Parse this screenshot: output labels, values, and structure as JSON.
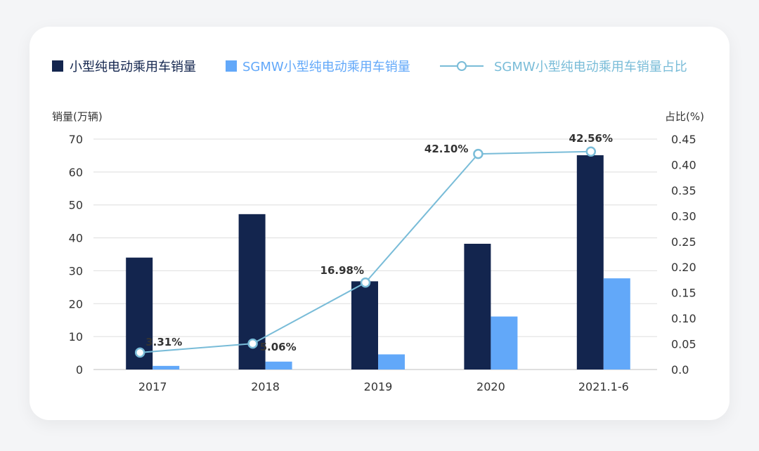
{
  "chart_data": {
    "type": "bar",
    "categories": [
      "2017",
      "2018",
      "2019",
      "2020",
      "2021.1-6"
    ],
    "series": [
      {
        "name": "小型纯电动乘用车销量",
        "type": "bar",
        "axis": "left",
        "values": [
          34,
          47.2,
          26.8,
          38.2,
          65.1
        ],
        "color": "#13254e"
      },
      {
        "name": "SGMW小型纯电动乘用车销量",
        "type": "bar",
        "axis": "left",
        "values": [
          1.1,
          2.4,
          4.6,
          16.1,
          27.7
        ],
        "color": "#62a8f9"
      },
      {
        "name": "SGMW小型纯电动乘用车销量占比",
        "type": "line",
        "axis": "right",
        "values": [
          0.0331,
          0.0506,
          0.1698,
          0.421,
          0.4256
        ],
        "labels": [
          "3.31%",
          "5.06%",
          "16.98%",
          "42.10%",
          "42.56%"
        ],
        "color": "#79bcd8"
      }
    ],
    "ylabel": "销量(万辆)",
    "y2label": "占比(%)",
    "ylim": [
      0,
      70
    ],
    "y2lim": [
      0,
      0.45
    ],
    "yticks": [
      "0",
      "10",
      "20",
      "30",
      "40",
      "50",
      "60",
      "70"
    ],
    "y2ticks": [
      "0.0",
      "0.05",
      "0.10",
      "0.15",
      "0.20",
      "0.25",
      "0.30",
      "0.35",
      "0.40",
      "0.45"
    ],
    "grid": true,
    "legend_position": "top-left"
  }
}
